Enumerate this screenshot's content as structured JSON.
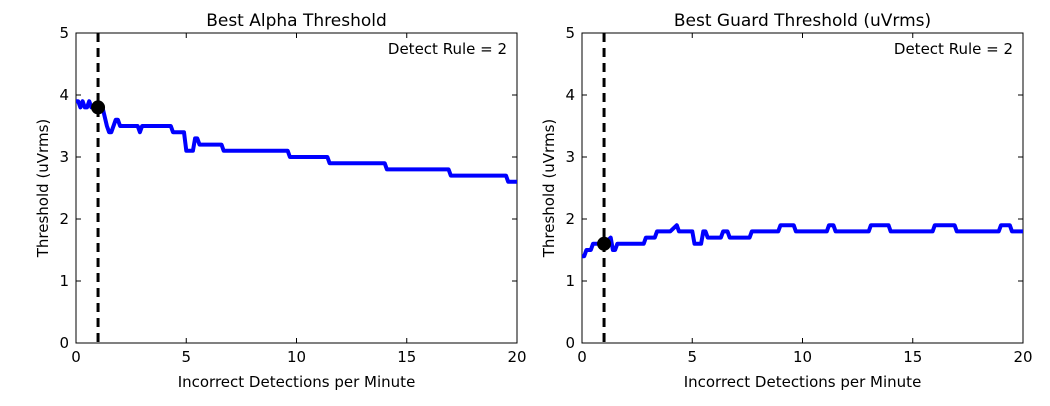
{
  "chart_data": [
    {
      "type": "line",
      "title": "Best Alpha Threshold",
      "xlabel": "Incorrect Detections per Minute",
      "ylabel": "Threshold (uVrms)",
      "xlim": [
        0,
        20
      ],
      "ylim": [
        0,
        5
      ],
      "xticks": [
        "0",
        "5",
        "10",
        "15",
        "20"
      ],
      "yticks": [
        "0",
        "1",
        "2",
        "3",
        "4",
        "5"
      ],
      "grid": false,
      "annotation": "Detect Rule = 2",
      "vline_x": 1.0,
      "marker": {
        "x": 1.0,
        "y": 3.8
      },
      "series": [
        {
          "name": "alpha",
          "color": "#0000ff",
          "x": [
            0,
            0.1,
            0.2,
            0.3,
            0.4,
            0.5,
            0.6,
            0.7,
            0.8,
            1.0,
            1.2,
            1.4,
            1.5,
            1.6,
            1.8,
            1.9,
            2.0,
            2.1,
            2.2,
            2.8,
            2.9,
            3.0,
            3.1,
            4.3,
            4.4,
            4.9,
            5.0,
            5.3,
            5.4,
            5.5,
            5.6,
            5.7,
            6.6,
            6.7,
            6.8,
            9.6,
            9.7,
            11.4,
            11.5,
            14.0,
            14.1,
            16.9,
            17.0,
            19.5,
            19.6,
            20.0
          ],
          "values": [
            3.9,
            3.9,
            3.8,
            3.9,
            3.8,
            3.8,
            3.9,
            3.8,
            3.8,
            3.8,
            3.8,
            3.5,
            3.4,
            3.4,
            3.6,
            3.6,
            3.5,
            3.5,
            3.5,
            3.5,
            3.4,
            3.5,
            3.5,
            3.5,
            3.4,
            3.4,
            3.1,
            3.1,
            3.3,
            3.3,
            3.2,
            3.2,
            3.2,
            3.1,
            3.1,
            3.1,
            3.0,
            3.0,
            2.9,
            2.9,
            2.8,
            2.8,
            2.7,
            2.7,
            2.6,
            2.6
          ]
        }
      ]
    },
    {
      "type": "line",
      "title": "Best Guard Threshold (uVrms)",
      "xlabel": "Incorrect Detections per Minute",
      "ylabel": "Threshold (uVrms)",
      "xlim": [
        0,
        20
      ],
      "ylim": [
        0,
        5
      ],
      "xticks": [
        "0",
        "5",
        "10",
        "15",
        "20"
      ],
      "yticks": [
        "0",
        "1",
        "2",
        "3",
        "4",
        "5"
      ],
      "grid": false,
      "annotation": "Detect Rule = 2",
      "vline_x": 1.0,
      "marker": {
        "x": 1.0,
        "y": 1.6
      },
      "series": [
        {
          "name": "guard",
          "color": "#0000ff",
          "x": [
            0,
            0.1,
            0.2,
            0.4,
            0.5,
            0.8,
            0.9,
            1.0,
            1.3,
            1.4,
            1.5,
            1.6,
            1.8,
            1.9,
            2.0,
            2.8,
            2.9,
            3.3,
            3.4,
            3.6,
            4.0,
            4.3,
            4.4,
            4.5,
            5.0,
            5.1,
            5.4,
            5.5,
            5.6,
            5.7,
            6.3,
            6.4,
            6.6,
            6.7,
            7.6,
            7.7,
            8.9,
            9.0,
            9.6,
            9.7,
            11.1,
            11.2,
            11.4,
            11.5,
            13.0,
            13.1,
            13.9,
            14.0,
            15.9,
            16.0,
            16.9,
            17.0,
            18.9,
            19.0,
            19.4,
            19.5,
            20.0
          ],
          "values": [
            1.4,
            1.4,
            1.5,
            1.5,
            1.6,
            1.6,
            1.6,
            1.6,
            1.7,
            1.5,
            1.5,
            1.6,
            1.6,
            1.6,
            1.6,
            1.6,
            1.7,
            1.7,
            1.8,
            1.8,
            1.8,
            1.9,
            1.8,
            1.8,
            1.8,
            1.6,
            1.6,
            1.8,
            1.8,
            1.7,
            1.7,
            1.8,
            1.8,
            1.7,
            1.7,
            1.8,
            1.8,
            1.9,
            1.9,
            1.8,
            1.8,
            1.9,
            1.9,
            1.8,
            1.8,
            1.9,
            1.9,
            1.8,
            1.8,
            1.9,
            1.9,
            1.8,
            1.8,
            1.9,
            1.9,
            1.8,
            1.8
          ]
        }
      ]
    }
  ]
}
